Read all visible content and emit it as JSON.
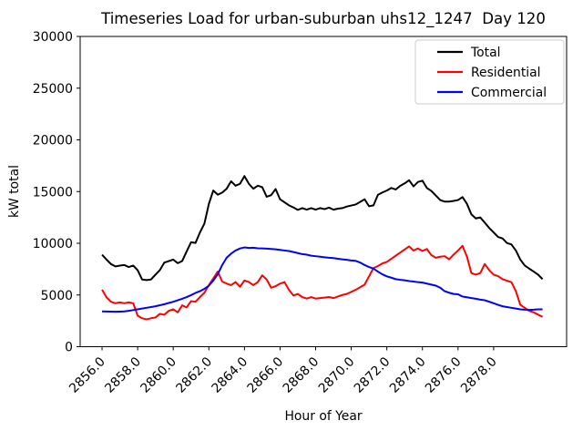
{
  "chart_data": {
    "type": "line",
    "title": "Timeseries Load for urban-suburban uhs12_1247  Day 120",
    "xlabel": "Hour of Year",
    "ylabel": "kW total",
    "xlim": [
      2854.77,
      2882.1
    ],
    "ylim": [
      0,
      30000
    ],
    "grid": false,
    "legend_position": "upper right",
    "background_color": "#ffffff",
    "spine_color": "#000000",
    "x_tick_values": [
      2856,
      2858,
      2860,
      2862,
      2864,
      2866,
      2868,
      2870,
      2872,
      2874,
      2876,
      2878
    ],
    "x_tick_labels": [
      "2856.0",
      "2858.0",
      "2860.0",
      "2862.0",
      "2864.0",
      "2866.0",
      "2868.0",
      "2870.0",
      "2872.0",
      "2874.0",
      "2876.0",
      "2878.0"
    ],
    "y_tick_values": [
      0,
      5000,
      10000,
      15000,
      20000,
      25000,
      30000
    ],
    "y_tick_labels": [
      "0",
      "5000",
      "10000",
      "15000",
      "20000",
      "25000",
      "30000"
    ],
    "x_start": 2856.0,
    "x_step": 0.25,
    "x_points": 100,
    "series": [
      {
        "name": "Total",
        "color": "#000000",
        "values": [
          8900,
          8425,
          7990,
          7760,
          7845,
          7900,
          7700,
          7845,
          7400,
          6500,
          6440,
          6500,
          6965,
          7410,
          8135,
          8280,
          8425,
          8075,
          8280,
          9200,
          10100,
          10030,
          11050,
          11900,
          13800,
          15100,
          14700,
          14900,
          15275,
          16000,
          15565,
          15750,
          16500,
          15750,
          15275,
          15565,
          15420,
          14500,
          14650,
          15250,
          14255,
          13965,
          13670,
          13470,
          13230,
          13400,
          13250,
          13400,
          13250,
          13400,
          13300,
          13450,
          13250,
          13350,
          13400,
          13550,
          13650,
          13750,
          14000,
          14255,
          13580,
          13670,
          14690,
          14910,
          15100,
          15350,
          15200,
          15550,
          15790,
          16100,
          15500,
          15930,
          16050,
          15350,
          15060,
          14620,
          14180,
          14030,
          14030,
          14100,
          14180,
          14470,
          13815,
          12795,
          12400,
          12500,
          12000,
          11485,
          11050,
          10615,
          10470,
          10030,
          9885,
          9300,
          8425,
          7845,
          7550,
          7260,
          6965,
          6530
        ]
      },
      {
        "name": "Residential",
        "color": "#ff0000",
        "values": [
          5510,
          4780,
          4345,
          4200,
          4285,
          4200,
          4285,
          4200,
          3000,
          2750,
          2650,
          2750,
          2825,
          3175,
          3090,
          3470,
          3615,
          3320,
          4000,
          3800,
          4400,
          4345,
          4800,
          5220,
          5950,
          6600,
          7260,
          6300,
          6100,
          5950,
          6250,
          5800,
          6400,
          6250,
          5950,
          6250,
          6900,
          6500,
          5700,
          5850,
          6100,
          6250,
          5500,
          4950,
          5100,
          4800,
          4650,
          4800,
          4650,
          4700,
          4750,
          4800,
          4700,
          4850,
          5000,
          5100,
          5300,
          5500,
          5750,
          6000,
          6800,
          7600,
          7800,
          8050,
          8200,
          8500,
          8800,
          9100,
          9400,
          9700,
          9300,
          9500,
          9250,
          9450,
          8850,
          8600,
          8700,
          8750,
          8450,
          8900,
          9300,
          9750,
          8720,
          7115,
          6965,
          7115,
          7990,
          7410,
          6965,
          6820,
          6530,
          6385,
          6240,
          5365,
          4050,
          3760,
          3470,
          3320,
          3100,
          2885
        ]
      },
      {
        "name": "Commercial",
        "color": "#0000ff",
        "values": [
          3410,
          3400,
          3390,
          3380,
          3390,
          3410,
          3470,
          3540,
          3615,
          3690,
          3760,
          3835,
          3910,
          4010,
          4110,
          4230,
          4345,
          4490,
          4635,
          4800,
          4985,
          5200,
          5365,
          5600,
          5900,
          6400,
          7000,
          7900,
          8600,
          9000,
          9300,
          9500,
          9600,
          9550,
          9570,
          9520,
          9500,
          9480,
          9450,
          9420,
          9360,
          9300,
          9250,
          9150,
          9050,
          8950,
          8900,
          8800,
          8750,
          8700,
          8650,
          8600,
          8570,
          8500,
          8450,
          8400,
          8335,
          8300,
          8135,
          7900,
          7700,
          7550,
          7260,
          7000,
          6800,
          6675,
          6530,
          6470,
          6420,
          6350,
          6295,
          6240,
          6200,
          6100,
          6000,
          5900,
          5700,
          5365,
          5220,
          5100,
          5070,
          4850,
          4780,
          4700,
          4635,
          4550,
          4490,
          4350,
          4200,
          4050,
          3910,
          3835,
          3760,
          3690,
          3615,
          3580,
          3560,
          3580,
          3615,
          3615
        ]
      }
    ]
  }
}
